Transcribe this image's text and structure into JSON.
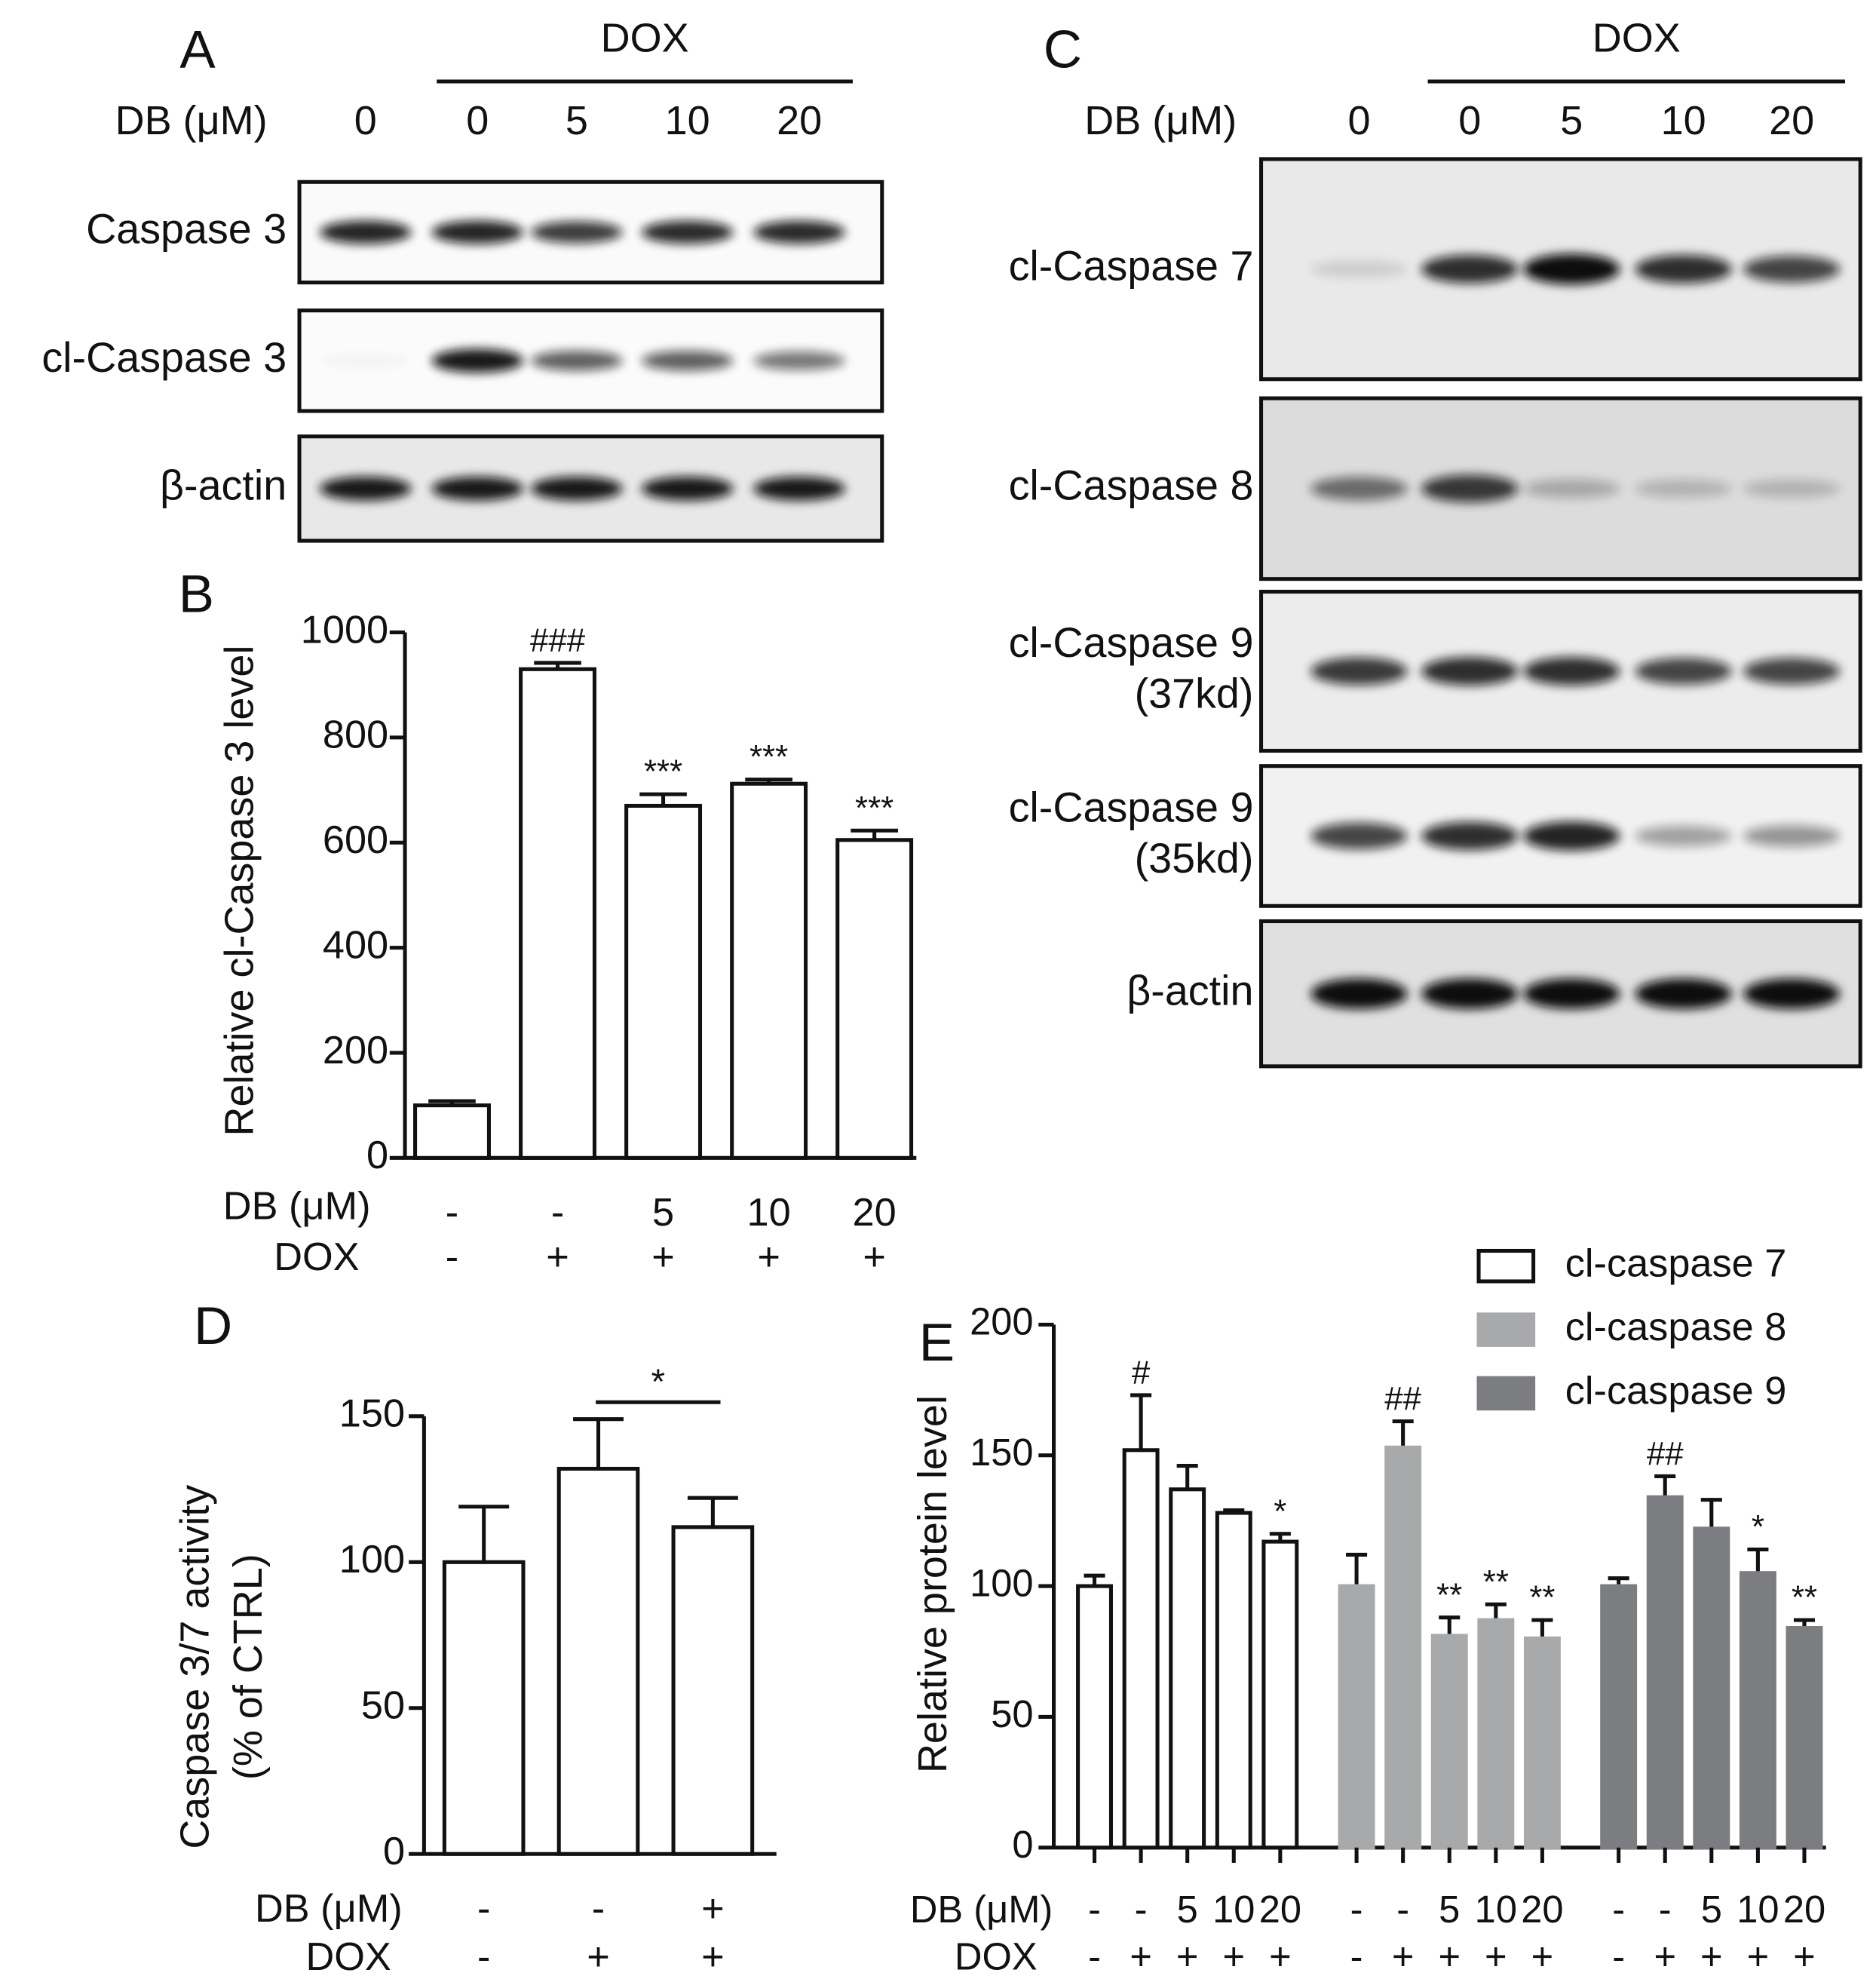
{
  "blots": [
    {
      "panel_label": "A",
      "treatment_label": "DOX",
      "dose_label": "DB (μM)",
      "doses": [
        "0",
        "0",
        "5",
        "10",
        "20"
      ],
      "rows": [
        [
          "Caspase 3"
        ],
        [
          "cl-Caspase 3"
        ],
        [
          "β-actin"
        ]
      ]
    },
    {
      "panel_label": "C",
      "treatment_label": "DOX",
      "dose_label": "DB (μM)",
      "doses": [
        "0",
        "0",
        "5",
        "10",
        "20"
      ],
      "rows": [
        [
          "cl-Caspase 7"
        ],
        [
          "cl-Caspase 8"
        ],
        [
          "cl-Caspase 9",
          "(37kd)"
        ],
        [
          "cl-Caspase 9",
          "(35kd)"
        ],
        [
          "β-actin"
        ]
      ]
    }
  ],
  "chart_data": [
    {
      "type": "bar",
      "panel_label": "B",
      "y_label": [
        "Relative cl-Caspase 3 level"
      ],
      "db_title": "DB (μM)",
      "dox_title": "DOX",
      "db_labels": [
        "-",
        "-",
        "5",
        "10",
        "20"
      ],
      "dox_labels": [
        "-",
        "+",
        "+",
        "+",
        "+"
      ],
      "values": [
        100,
        930,
        670,
        712,
        605
      ],
      "errors": [
        8,
        12,
        22,
        8,
        18
      ],
      "annotations": [
        null,
        "###",
        "***",
        "***",
        "***"
      ],
      "color": "#ffffff",
      "ylim": [
        0,
        1000
      ],
      "yticks": [
        0,
        200,
        400,
        600,
        800,
        1000
      ]
    },
    {
      "type": "bar",
      "panel_label": "D",
      "y_label": [
        "Caspase 3/7 activity",
        "(% of CTRL)"
      ],
      "db_title": "DB (μM)",
      "dox_title": "DOX",
      "db_labels": [
        "-",
        "-",
        "+"
      ],
      "dox_labels": [
        "-",
        "+",
        "+"
      ],
      "values": [
        100,
        132,
        112
      ],
      "errors": [
        19,
        17,
        10
      ],
      "significance_label": "*",
      "color": "#ffffff",
      "ylim": [
        0,
        150
      ],
      "yticks": [
        0,
        50,
        100,
        150
      ]
    },
    {
      "type": "bar",
      "panel_label": "E",
      "y_label": [
        "Relative protein level"
      ],
      "db_title": "DB (μM)",
      "dox_title": "DOX",
      "db_labels": [
        "-",
        "-",
        "5",
        "10",
        "20"
      ],
      "dox_labels": [
        "-",
        "+",
        "+",
        "+",
        "+"
      ],
      "series": [
        {
          "name": "cl-caspase 7",
          "color": "#ffffff",
          "values": [
            100,
            152,
            137,
            128,
            117
          ],
          "errors": [
            4,
            21,
            9,
            1,
            3
          ],
          "annotations": [
            null,
            "#",
            null,
            null,
            "*"
          ]
        },
        {
          "name": "cl-caspase 8",
          "color": "#a8a9ab",
          "values": [
            100,
            153,
            81,
            87,
            80
          ],
          "errors": [
            12,
            10,
            7,
            6,
            7
          ],
          "annotations": [
            null,
            "##",
            "**",
            "**",
            "**"
          ]
        },
        {
          "name": "cl-caspase 9",
          "color": "#7c7d80",
          "values": [
            100,
            134,
            122,
            105,
            84
          ],
          "errors": [
            3,
            8,
            11,
            9,
            3
          ],
          "annotations": [
            null,
            "##",
            null,
            "*",
            "**"
          ]
        }
      ],
      "ylim": [
        0,
        200
      ],
      "yticks": [
        0,
        50,
        100,
        150,
        200
      ],
      "legend": "upper right"
    }
  ]
}
